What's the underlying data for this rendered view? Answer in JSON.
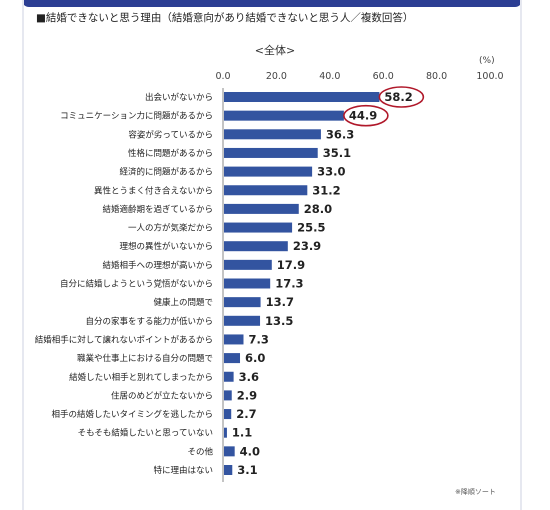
{
  "heading": "■結婚できないと思う理由（結婚意向があり結婚できないと思う人／複数回答）",
  "subtitle": "<全体>",
  "unit": "(%)",
  "note": "※降順ソート",
  "colors": {
    "bar": "#3354a0",
    "highlight": "#b0182a",
    "frame": "#2c3e93"
  },
  "chart_data": {
    "type": "bar",
    "orientation": "horizontal",
    "xlim": [
      0,
      100
    ],
    "ticks": [
      "0.0",
      "20.0",
      "40.0",
      "60.0",
      "80.0",
      "100.0"
    ],
    "categories": [
      "出会いがないから",
      "コミュニケーション力に問題があるから",
      "容姿が劣っているから",
      "性格に問題があるから",
      "経済的に問題があるから",
      "異性とうまく付き合えないから",
      "結婚適齢期を過ぎているから",
      "一人の方が気楽だから",
      "理想の異性がいないから",
      "結婚相手への理想が高いから",
      "自分に結婚しようという覚悟がないから",
      "健康上の問題で",
      "自分の家事をする能力が低いから",
      "結婚相手に対して譲れないポイントがあるから",
      "職業や仕事上における自分の問題で",
      "結婚したい相手と別れてしまったから",
      "住居のめどが立たないから",
      "相手の結婚したいタイミングを逃したから",
      "そもそも結婚したいと思っていない",
      "その他",
      "特に理由はない"
    ],
    "values": [
      58.2,
      44.9,
      36.3,
      35.1,
      33.0,
      31.2,
      28.0,
      25.5,
      23.9,
      17.9,
      17.3,
      13.7,
      13.5,
      7.3,
      6.0,
      3.6,
      2.9,
      2.7,
      1.1,
      4.0,
      3.1
    ],
    "value_labels": [
      "58.2",
      "44.9",
      "36.3",
      "35.1",
      "33.0",
      "31.2",
      "28.0",
      "25.5",
      "23.9",
      "17.9",
      "17.3",
      "13.7",
      "13.5",
      "7.3",
      "6.0",
      "3.6",
      "2.9",
      "2.7",
      "1.1",
      "4.0",
      "3.1"
    ],
    "highlighted": [
      0,
      1
    ],
    "grid": false,
    "legend": "none"
  }
}
